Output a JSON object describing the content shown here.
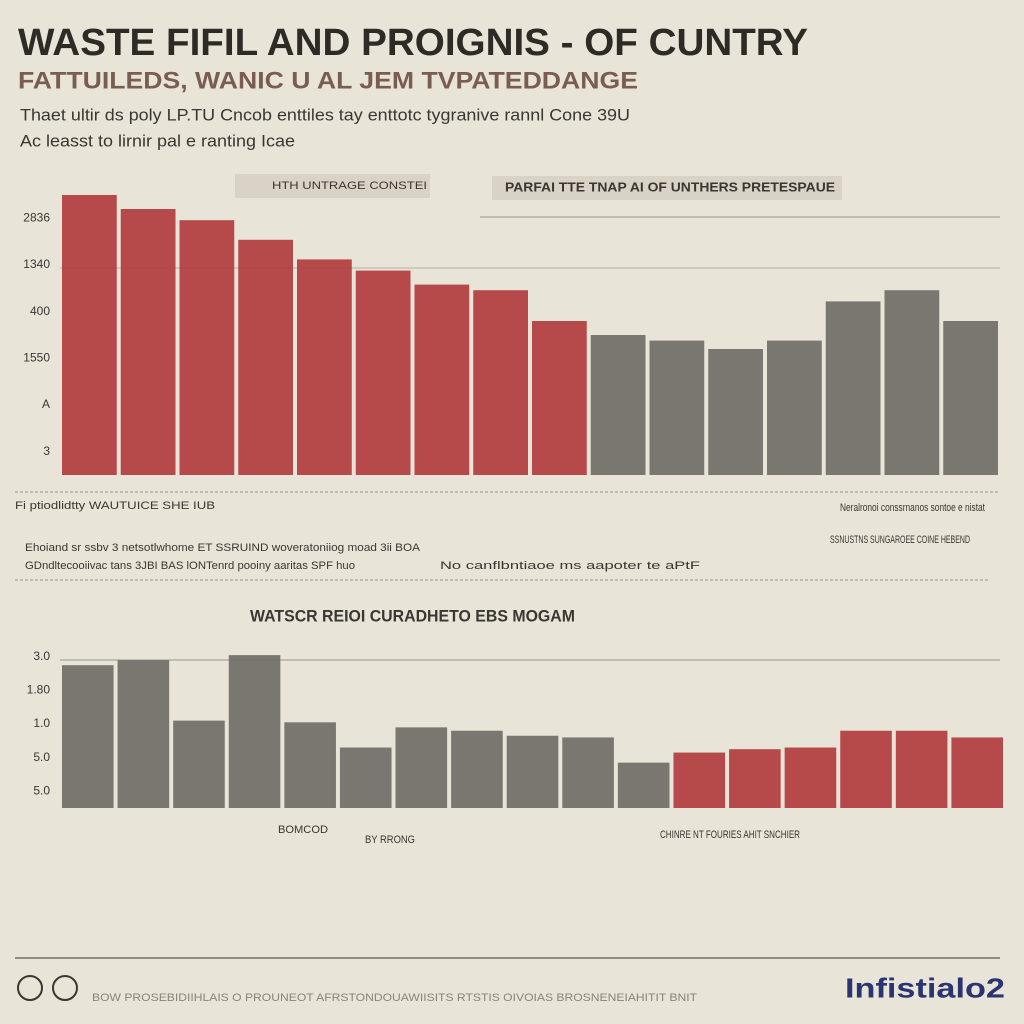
{
  "header": {
    "title": "WASTE FIFIL AND PROIGNIS - OF CUNTRY",
    "subtitle": "FATTUILEDS, WANIC U AL JEM TVPATEDDANGE",
    "lines": [
      "Thaet ultir ds poly LP.TU Cncob enttiles tay enttotc tygranive rannl Cone 39U",
      "Ac leasst to lirnir pal e ranting Icae"
    ]
  },
  "chart_data": [
    {
      "type": "bar",
      "title": "PARFAI TTE TNAP AI OF UNTHERS PRETESPAUE",
      "label": "HTH UNTRAGE CONSTEI",
      "axis_labels": [
        "2836",
        "1340",
        "400",
        "1550",
        "A",
        "3"
      ],
      "values": [
        100,
        95,
        91,
        84,
        77,
        73,
        68,
        66,
        55,
        50,
        48,
        45,
        48,
        62,
        66,
        55
      ],
      "colors": [
        "#b0393c",
        "#b0393c",
        "#b0393c",
        "#b0393c",
        "#b0393c",
        "#b0393c",
        "#b0393c",
        "#b0393c",
        "#b0393c",
        "#6e6a66",
        "#6e6a66",
        "#6e6a66",
        "#6e6a66",
        "#6e6a66",
        "#6e6a66",
        "#6e6a66"
      ],
      "ylim": [
        0,
        100
      ]
    },
    {
      "type": "bar",
      "title": "WATSCR REIOI CURADHETO EBS MOGAM",
      "axis_labels": [
        "3.0",
        "1.80",
        "1.0",
        "5.0",
        "5.0"
      ],
      "values": [
        85,
        88,
        52,
        91,
        51,
        36,
        48,
        46,
        43,
        42,
        27,
        33,
        35,
        36,
        46,
        46,
        42
      ],
      "colors": [
        "#6e6a66",
        "#6e6a66",
        "#6e6a66",
        "#6e6a66",
        "#6e6a66",
        "#6e6a66",
        "#6e6a66",
        "#6e6a66",
        "#6e6a66",
        "#6e6a66",
        "#6e6a66",
        "#b0393c",
        "#b0393c",
        "#b0393c",
        "#b0393c",
        "#b0393c",
        "#b0393c"
      ],
      "ylim": [
        0,
        100
      ]
    }
  ],
  "notes": [
    "Fi ptiodlidtty WAUTUICE SHE IUB",
    "Ehoiand sr ssbv 3 netsotlwhome ET SSRUIND woveratoniiog moad 3ii BOA",
    "GDndltecooiivac tans 3JBI BAS lONTenrd pooiny aaritas SPF huo",
    "No canflbntiaoe ms aapoter te aPtF",
    "Neralronoi conssrnanos sontoe e nistat",
    "SSNUSTNS SUNGAROEE COINE HEBEND",
    "BOMCOD",
    "BY RRONG",
    "CHINRE NT FOURIES AHIT SNCHIER"
  ],
  "footer": {
    "text": "BOW PROSEBIDIIHLAIS O PROUNEOT AFRSTONDOUAWIISITS RTSTIS OIVOIAS BROSNENEIAHITIT BNIT",
    "logo": "Infistialo2"
  }
}
